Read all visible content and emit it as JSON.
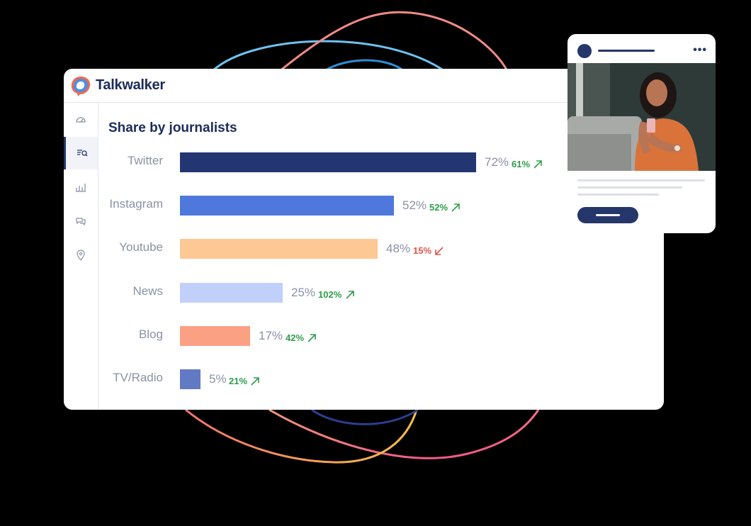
{
  "app": {
    "brand": "Talkwalker"
  },
  "sidebar": {
    "items": [
      {
        "icon": "dashboard-gauge-icon",
        "active": false
      },
      {
        "icon": "search-list-icon",
        "active": true
      },
      {
        "icon": "bar-chart-icon",
        "active": false
      },
      {
        "icon": "chat-bubbles-icon",
        "active": false
      },
      {
        "icon": "map-pin-icon",
        "active": false
      }
    ]
  },
  "chart_data": {
    "type": "bar",
    "title": "Share by journalists",
    "categories": [
      "Twitter",
      "Instagram",
      "Youtube",
      "News",
      "Blog",
      "TV/Radio"
    ],
    "values": [
      72,
      52,
      48,
      25,
      17,
      5
    ],
    "value_labels": [
      "72%",
      "52%",
      "48%",
      "25%",
      "17%",
      "5%"
    ],
    "changes": [
      "61%",
      "52%",
      "15%",
      "102%",
      "42%",
      "21%"
    ],
    "change_direction": [
      "up",
      "up",
      "down",
      "up",
      "up",
      "up"
    ],
    "bar_colors": [
      "#243672",
      "#4f78dc",
      "#fdc894",
      "#c1d0fb",
      "#fca083",
      "#6279c4"
    ],
    "xlim": [
      0,
      72
    ]
  },
  "post": {
    "avatar_color": "#25366b",
    "more_icon": "more-dots-icon",
    "more_text": "•••"
  },
  "colors": {
    "background": "#000000",
    "navy": "#1c2b5a",
    "up": "#2e9e4a",
    "down": "#e2564c"
  }
}
